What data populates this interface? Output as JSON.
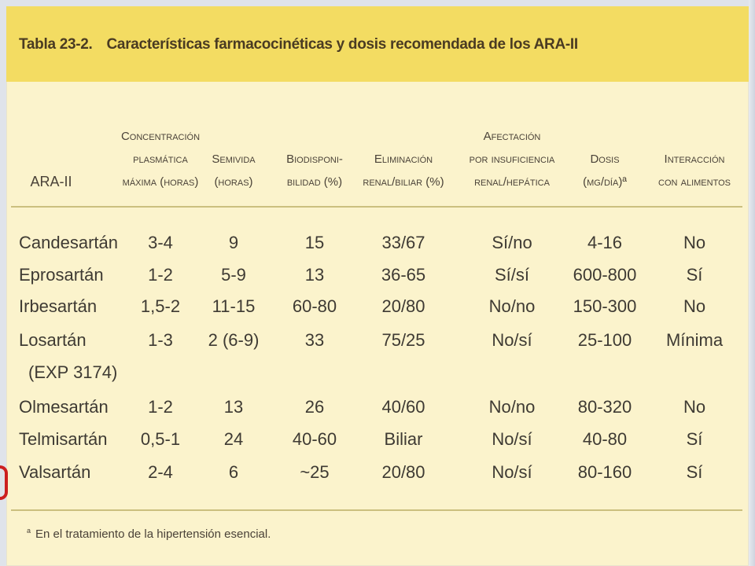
{
  "title": {
    "number": "Tabla 23-2.",
    "text": "Características farmacocinéticas y dosis recomendada de los ARA-II"
  },
  "columns": [
    {
      "key": "drug",
      "lines": [
        "ARA-II"
      ]
    },
    {
      "key": "cmax",
      "lines": [
        "Concentración",
        "plasmática",
        "máxima (horas)"
      ]
    },
    {
      "key": "half",
      "lines": [
        "Semivida",
        "(horas)"
      ]
    },
    {
      "key": "bio",
      "lines": [
        "Biodisponi-",
        "bilidad (%)"
      ]
    },
    {
      "key": "elim",
      "lines": [
        "Eliminación",
        "renal/biliar (%)"
      ]
    },
    {
      "key": "insuf",
      "lines": [
        "Afectación",
        "por insuficiencia",
        "renal/hepática"
      ]
    },
    {
      "key": "dose",
      "lines": [
        "Dosis",
        "(mg/día)ª"
      ]
    },
    {
      "key": "food",
      "lines": [
        "Interacción",
        "con alimentos"
      ]
    }
  ],
  "rows": [
    {
      "drug": "Candesartán",
      "cmax": "3-4",
      "half": "9",
      "bio": "15",
      "elim": "33/67",
      "insuf": "Sí/no",
      "dose": "4-16",
      "food": "No"
    },
    {
      "drug": "Eprosartán",
      "cmax": "1-2",
      "half": "5-9",
      "bio": "13",
      "elim": "36-65",
      "insuf": "Sí/sí",
      "dose": "600-800",
      "food": "Sí"
    },
    {
      "drug": "Irbesartán",
      "cmax": "1,5-2",
      "half": "11-15",
      "bio": "60-80",
      "elim": "20/80",
      "insuf": "No/no",
      "dose": "150-300",
      "food": "No"
    },
    {
      "drug": "Losartán",
      "cmax": "1-3",
      "half": "2 (6-9)",
      "bio": "33",
      "elim": "75/25",
      "insuf": "No/sí",
      "dose": "25-100",
      "food": "Mínima"
    },
    {
      "drug": "(EXP 3174)",
      "cmax": "",
      "half": "",
      "bio": "",
      "elim": "",
      "insuf": "",
      "dose": "",
      "food": ""
    },
    {
      "drug": "Olmesartán",
      "cmax": "1-2",
      "half": "13",
      "bio": "26",
      "elim": "40/60",
      "insuf": "No/no",
      "dose": "80-320",
      "food": "No"
    },
    {
      "drug": "Telmisartán",
      "cmax": "0,5-1",
      "half": "24",
      "bio": "40-60",
      "elim": "Biliar",
      "insuf": "No/sí",
      "dose": "40-80",
      "food": "Sí"
    },
    {
      "drug": "Valsartán",
      "cmax": "2-4",
      "half": "6",
      "bio": "~25",
      "elim": "20/80",
      "insuf": "No/sí",
      "dose": "80-160",
      "food": "Sí"
    }
  ],
  "footnote": {
    "marker": "a",
    "text": "En el tratamiento de la hipertensión esencial."
  }
}
